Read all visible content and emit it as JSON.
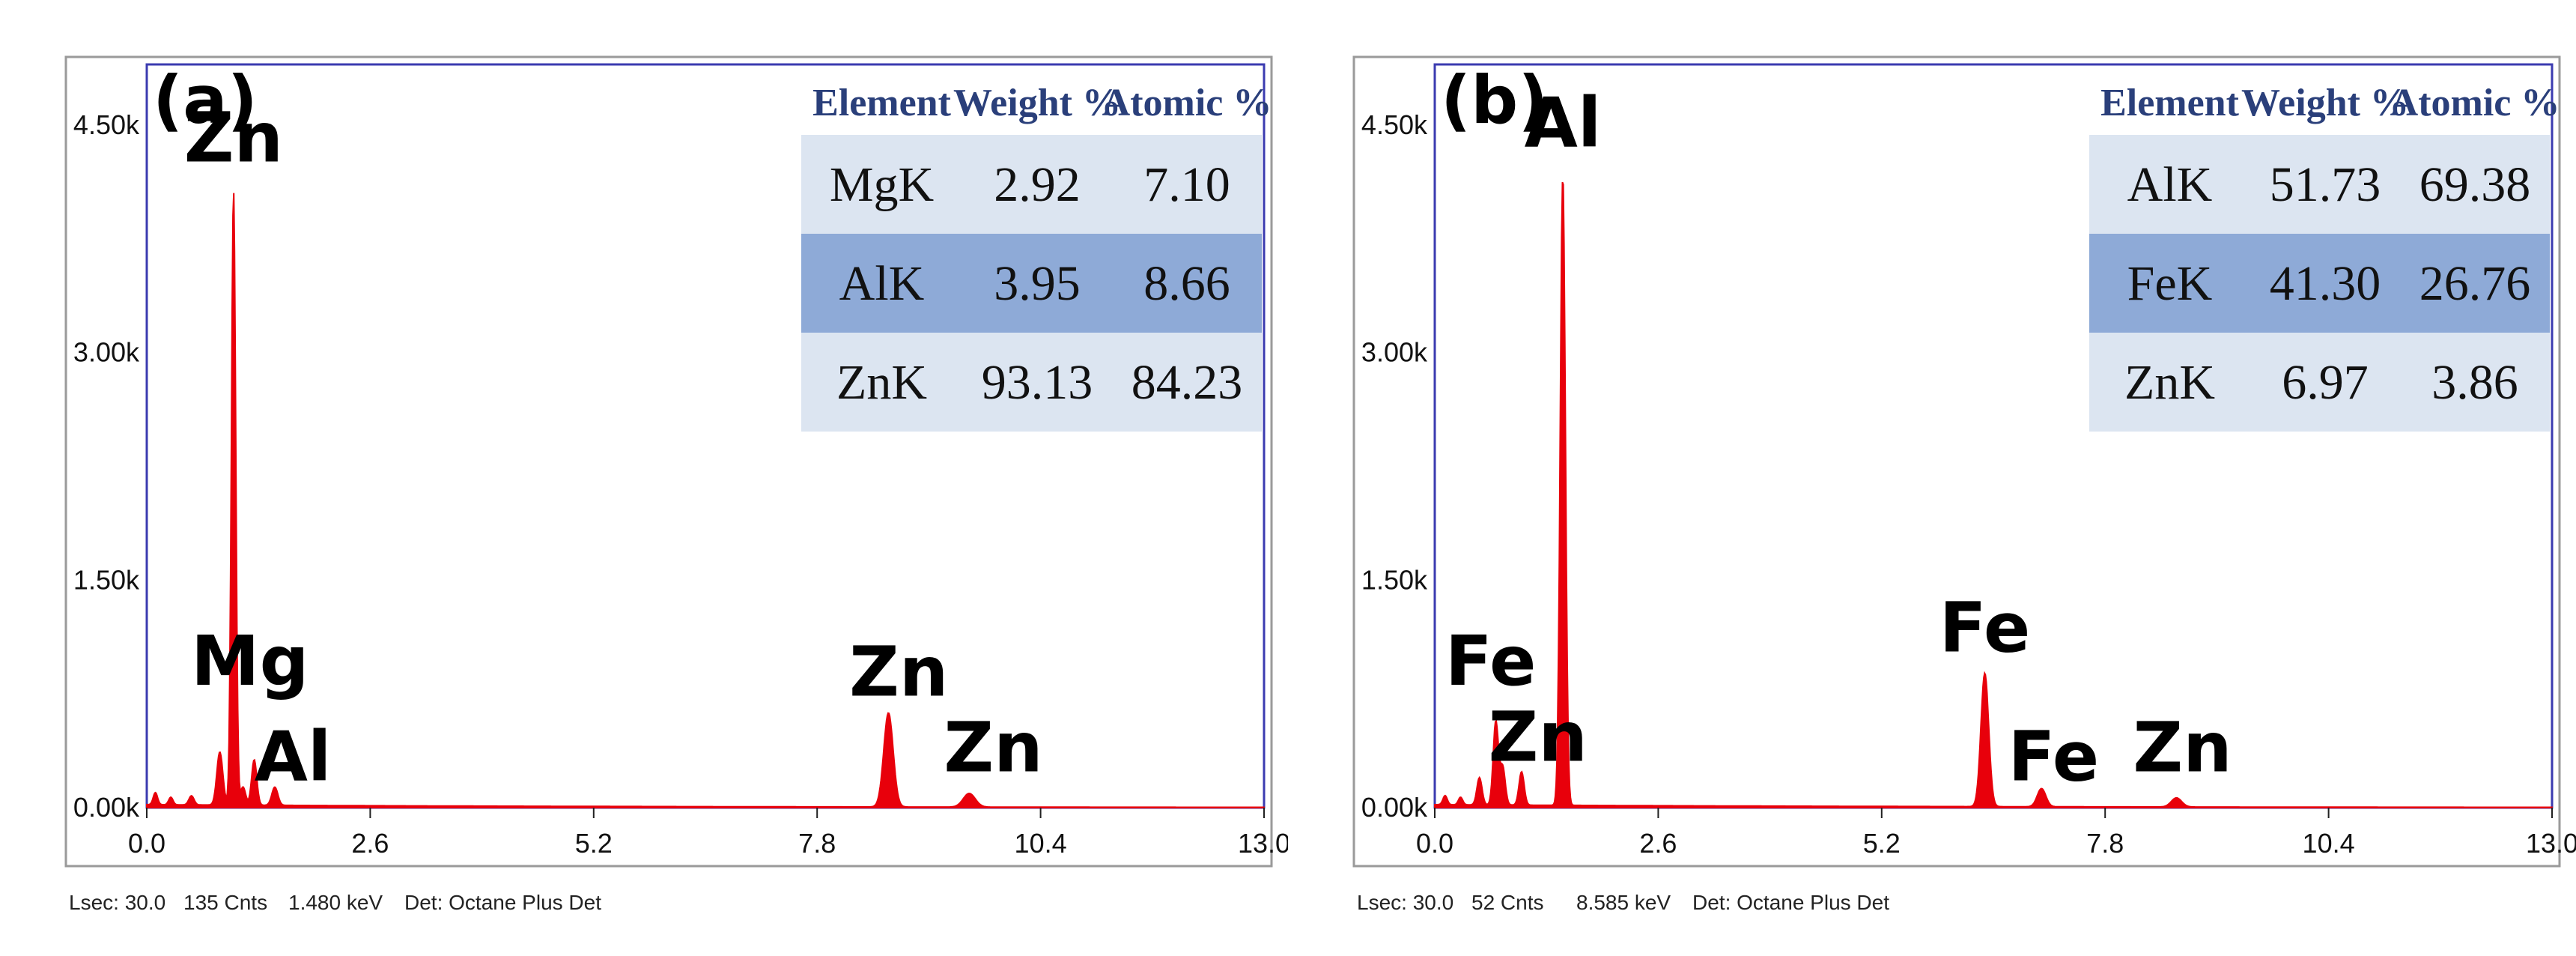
{
  "chart_data": [
    {
      "id": "a",
      "type": "area",
      "panel_label": "(a)",
      "xlim": [
        0.0,
        13.0
      ],
      "ylim": [
        0,
        4.9
      ],
      "x_ticks": [
        "0.0",
        "2.6",
        "5.2",
        "7.8",
        "10.4",
        "13.0"
      ],
      "x_tick_values": [
        0.0,
        2.6,
        5.2,
        7.8,
        10.4,
        13.0
      ],
      "y_ticks": [
        "0.00k",
        "1.50k",
        "3.00k",
        "4.50k"
      ],
      "y_tick_values": [
        0,
        1.5,
        3.0,
        4.5
      ],
      "spectrum_color": "#e8000b",
      "peaks": [
        {
          "energy": 0.1,
          "height": 0.08,
          "width": 0.025
        },
        {
          "energy": 0.28,
          "height": 0.05,
          "width": 0.025
        },
        {
          "energy": 0.52,
          "height": 0.06,
          "width": 0.03
        },
        {
          "energy": 0.85,
          "height": 0.35,
          "width": 0.035
        },
        {
          "energy": 1.01,
          "height": 4.05,
          "width": 0.025
        },
        {
          "energy": 1.12,
          "height": 0.12,
          "width": 0.03
        },
        {
          "energy": 1.25,
          "height": 0.3,
          "width": 0.03
        },
        {
          "energy": 1.49,
          "height": 0.12,
          "width": 0.035
        },
        {
          "energy": 8.63,
          "height": 0.62,
          "width": 0.055
        },
        {
          "energy": 9.57,
          "height": 0.09,
          "width": 0.07
        }
      ],
      "peak_labels": [
        {
          "text": "Zn",
          "energy": 1.01,
          "height": 4.2
        },
        {
          "text": "Mg",
          "energy": 1.2,
          "height": 0.75
        },
        {
          "text": "Al",
          "energy": 1.7,
          "height": 0.12
        },
        {
          "text": "Zn",
          "energy": 8.75,
          "height": 0.68
        },
        {
          "text": "Zn",
          "energy": 9.85,
          "height": 0.18
        }
      ],
      "table": {
        "headers": [
          "Element",
          "Weight %",
          "Atomic %"
        ],
        "rows": [
          [
            "MgK",
            "2.92",
            "7.10"
          ],
          [
            "AlK",
            "3.95",
            "8.66"
          ],
          [
            "ZnK",
            "93.13",
            "84.23"
          ]
        ]
      },
      "footer": {
        "lsec": "Lsec: 30.0",
        "cnts": "135 Cnts",
        "kev": "1.480 keV",
        "det": "Det: Octane Plus Det"
      }
    },
    {
      "id": "b",
      "type": "area",
      "panel_label": "(b)",
      "xlim": [
        0.0,
        13.0
      ],
      "ylim": [
        0,
        4.9
      ],
      "x_ticks": [
        "0.0",
        "2.6",
        "5.2",
        "7.8",
        "10.4",
        "13.0"
      ],
      "x_tick_values": [
        0.0,
        2.6,
        5.2,
        7.8,
        10.4,
        13.0
      ],
      "y_ticks": [
        "0.00k",
        "1.50k",
        "3.00k",
        "4.50k"
      ],
      "y_tick_values": [
        0,
        1.5,
        3.0,
        4.5
      ],
      "spectrum_color": "#e8000b",
      "peaks": [
        {
          "energy": 0.12,
          "height": 0.06,
          "width": 0.025
        },
        {
          "energy": 0.3,
          "height": 0.05,
          "width": 0.025
        },
        {
          "energy": 0.52,
          "height": 0.18,
          "width": 0.03
        },
        {
          "energy": 0.71,
          "height": 0.55,
          "width": 0.03
        },
        {
          "energy": 0.79,
          "height": 0.25,
          "width": 0.03
        },
        {
          "energy": 1.01,
          "height": 0.22,
          "width": 0.03
        },
        {
          "energy": 1.49,
          "height": 4.15,
          "width": 0.03
        },
        {
          "energy": 6.4,
          "height": 0.88,
          "width": 0.045
        },
        {
          "energy": 7.06,
          "height": 0.12,
          "width": 0.05
        },
        {
          "energy": 8.63,
          "height": 0.06,
          "width": 0.06
        }
      ],
      "peak_labels": [
        {
          "text": "Al",
          "energy": 1.49,
          "height": 4.3
        },
        {
          "text": "Fe",
          "energy": 0.65,
          "height": 0.75
        },
        {
          "text": "Zn",
          "energy": 1.2,
          "height": 0.25
        },
        {
          "text": "Fe",
          "energy": 6.4,
          "height": 0.97
        },
        {
          "text": "Fe",
          "energy": 7.2,
          "height": 0.12
        },
        {
          "text": "Zn",
          "energy": 8.7,
          "height": 0.18
        }
      ],
      "table": {
        "headers": [
          "Element",
          "Weight %",
          "Atomic %"
        ],
        "rows": [
          [
            "AlK",
            "51.73",
            "69.38"
          ],
          [
            "FeK",
            "41.30",
            "26.76"
          ],
          [
            "ZnK",
            "6.97",
            "3.86"
          ]
        ]
      },
      "footer": {
        "lsec": "Lsec: 30.0",
        "cnts": "52 Cnts",
        "kev": "8.585 keV",
        "det": "Det: Octane Plus Det"
      }
    }
  ]
}
